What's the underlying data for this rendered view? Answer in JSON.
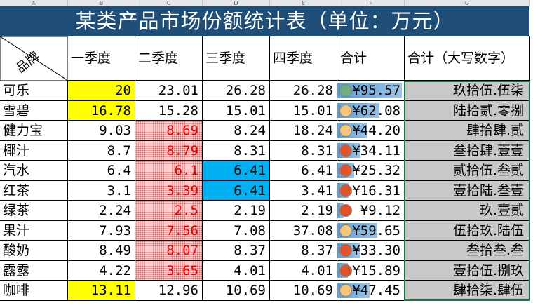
{
  "column_letters": [
    "A",
    "B",
    "C",
    "D",
    "E",
    "F",
    "G"
  ],
  "title": "某类产品市场份额统计表（单位：万元）",
  "header": {
    "corner": "品牌",
    "q1": "一季度",
    "q2": "二季度",
    "q3": "三季度",
    "q4": "四季度",
    "total": "合计",
    "total_cn": "合计（大写数字）"
  },
  "rows": [
    {
      "name": "可乐",
      "q1": "20",
      "q2": "23.01",
      "q3": "26.28",
      "q4": "26.28",
      "total": "¥95.57",
      "total_value": 95.57,
      "icon": "green",
      "total_cn": "玖拾伍.伍柒"
    },
    {
      "name": "雪碧",
      "q1": "16.78",
      "q2": "15.28",
      "q3": "15.01",
      "q4": "15.01",
      "total": "¥62.08",
      "total_value": 62.08,
      "icon": "yellow",
      "total_cn": "陆拾贰.零捌"
    },
    {
      "name": "健力宝",
      "q1": "9.03",
      "q2": "8.69",
      "q3": "8.24",
      "q4": "18.24",
      "total": "¥44.20",
      "total_value": 44.2,
      "icon": "yellow",
      "total_cn": "肆拾肆.贰"
    },
    {
      "name": "椰汁",
      "q1": "8.7",
      "q2": "8.79",
      "q3": "8.31",
      "q4": "8.31",
      "total": "¥34.11",
      "total_value": 34.11,
      "icon": "red",
      "total_cn": "叁拾肆.壹壹"
    },
    {
      "name": "汽水",
      "q1": "6.4",
      "q2": "6.1",
      "q3": "6.41",
      "q4": "6.41",
      "total": "¥25.32",
      "total_value": 25.32,
      "icon": "red",
      "total_cn": "贰拾伍.叁贰"
    },
    {
      "name": "红茶",
      "q1": "3.1",
      "q2": "3.39",
      "q3": "6.41",
      "q4": "3.41",
      "total": "¥16.31",
      "total_value": 16.31,
      "icon": "red",
      "total_cn": "壹拾陆.叁壹"
    },
    {
      "name": "绿茶",
      "q1": "2.24",
      "q2": "2.5",
      "q3": "2.19",
      "q4": "2.19",
      "total": "¥9.12",
      "total_value": 9.12,
      "icon": "red",
      "total_cn": "玖.壹贰"
    },
    {
      "name": "果汁",
      "q1": "7.93",
      "q2": "7.56",
      "q3": "7.08",
      "q4": "37.08",
      "total": "¥59.65",
      "total_value": 59.65,
      "icon": "yellow",
      "total_cn": "伍拾玖.陆伍"
    },
    {
      "name": "酸奶",
      "q1": "8.49",
      "q2": "8.07",
      "q3": "8.37",
      "q4": "8.37",
      "total": "¥33.30",
      "total_value": 33.3,
      "icon": "red",
      "total_cn": "叁拾叁.叁"
    },
    {
      "name": "露露",
      "q1": "4.22",
      "q2": "3.65",
      "q3": "4.01",
      "q4": "4.01",
      "total": "¥15.89",
      "total_value": 15.89,
      "icon": "red",
      "total_cn": "壹拾伍.捌玖"
    },
    {
      "name": "咖啡",
      "q1": "13.11",
      "q2": "12.96",
      "q3": "10.69",
      "q4": "10.69",
      "total": "¥47.45",
      "total_value": 47.45,
      "icon": "yellow",
      "total_cn": "肆拾柒.肆伍"
    }
  ],
  "highlights": {
    "q1_yellow_rows": [
      0,
      1,
      10
    ],
    "q2_hatched_rows": [
      2,
      3,
      4,
      5,
      6,
      7,
      8,
      9
    ],
    "q3_blue_rows": [
      4,
      5
    ]
  },
  "colors": {
    "title_bg": "#1f4e79",
    "yellow": "#ffff00",
    "blue": "#00b0f0",
    "hatched_text": "#e60000",
    "cn_bg": "#c8c8c8",
    "icon_green": "#70ad85",
    "icon_yellow": "#f4c77a",
    "icon_red": "#e0542c"
  }
}
